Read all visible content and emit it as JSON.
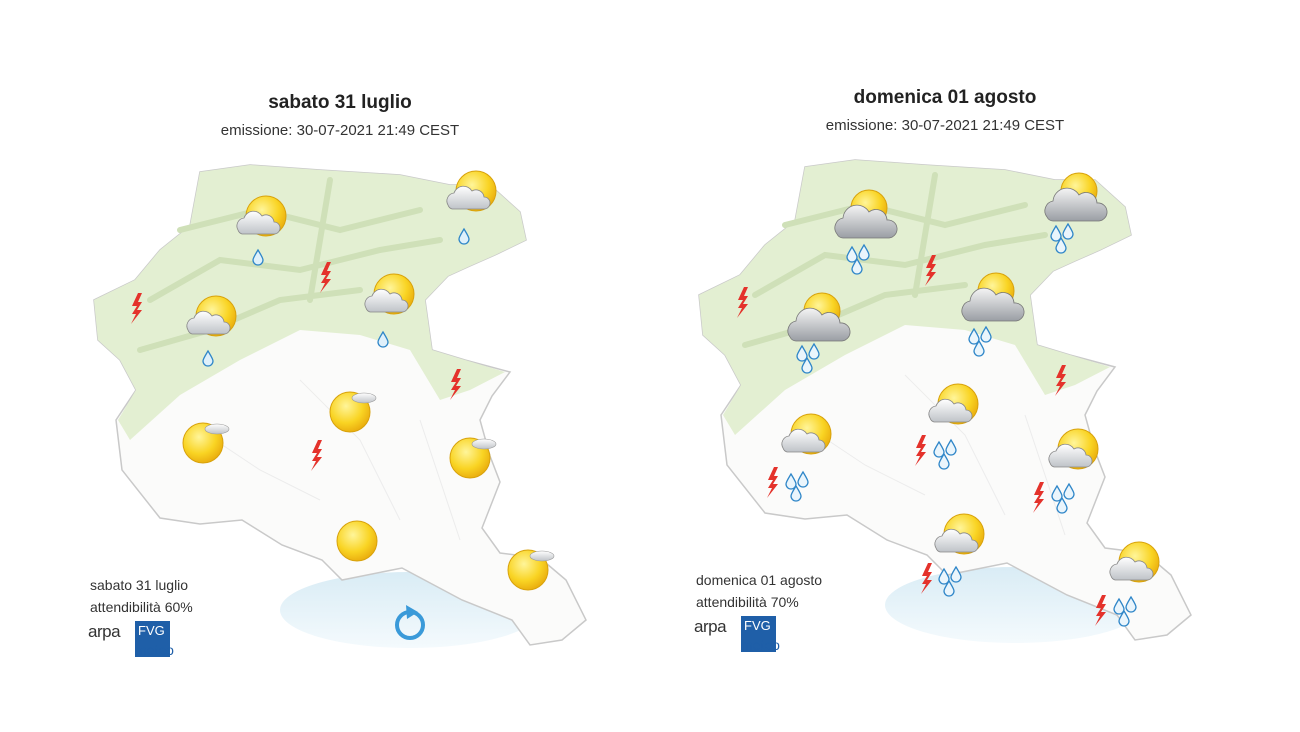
{
  "maps": [
    {
      "title": "sabato 31 luglio",
      "emission": "emissione: 30-07-2021 21:49 CEST",
      "footer_date": "sabato 31 luglio",
      "reliability": "attendibilità 60%",
      "logo": {
        "arpa": "arpa",
        "fvg": "FVG",
        "meteo": "meteo"
      }
    },
    {
      "title": "domenica 01 agosto",
      "emission": "emissione: 30-07-2021 21:49 CEST",
      "footer_date": "domenica 01 agosto",
      "reliability": "attendibilità 70%",
      "logo": {
        "arpa": "arpa",
        "fvg": "FVG",
        "meteo": "meteo"
      }
    }
  ]
}
